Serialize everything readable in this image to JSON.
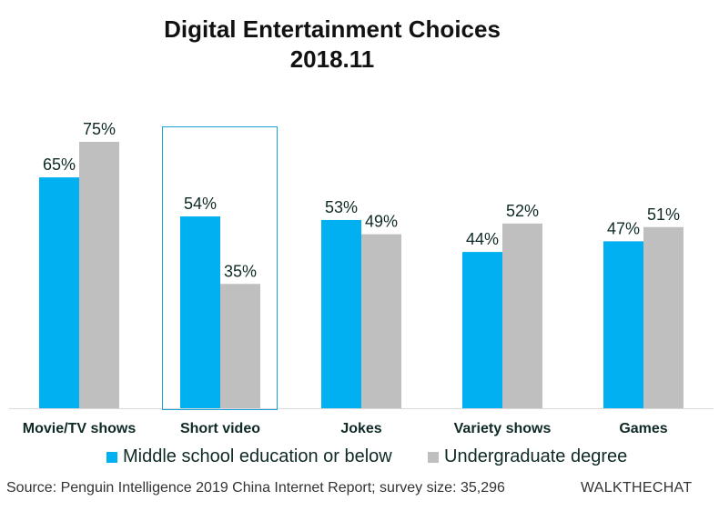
{
  "chart_data": {
    "type": "bar",
    "title": "Digital Entertainment Choices",
    "subtitle": "2018.11",
    "categories": [
      "Movie/TV shows",
      "Short video",
      "Jokes",
      "Variety shows",
      "Games"
    ],
    "series": [
      {
        "name": "Middle school education or below",
        "color": "#00b0f0",
        "values": [
          65,
          54,
          53,
          44,
          47
        ]
      },
      {
        "name": "Undergraduate degree",
        "color": "#bfbfbf",
        "values": [
          75,
          35,
          49,
          52,
          51
        ]
      }
    ],
    "value_format": "percent",
    "xlabel": "",
    "ylabel": "",
    "ylim": [
      0,
      75
    ],
    "grid": false,
    "legend_position": "bottom",
    "highlighted_category": "Short video",
    "highlight_color": "#1aa3d9"
  },
  "footer": {
    "source": "Source: Penguin Intelligence 2019 China Internet Report; survey size: 35,296",
    "brand": "WALKTHECHAT"
  }
}
